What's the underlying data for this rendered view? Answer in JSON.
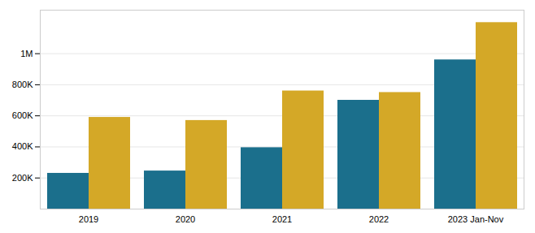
{
  "chart_data": {
    "type": "bar",
    "categories": [
      "2019",
      "2020",
      "2021",
      "2022",
      "2023 Jan-Nov"
    ],
    "series": [
      {
        "color": "#1b6f8c",
        "values": [
          230000,
          245000,
          395000,
          700000,
          960000
        ]
      },
      {
        "color": "#d4a827",
        "values": [
          590000,
          570000,
          760000,
          750000,
          1200000
        ]
      }
    ],
    "ylim": [
      0,
      1280000
    ],
    "yticks": [
      {
        "value": 200000,
        "label": "200K"
      },
      {
        "value": 400000,
        "label": "400K"
      },
      {
        "value": 600000,
        "label": "600K"
      },
      {
        "value": 800000,
        "label": "800K"
      },
      {
        "value": 1000000,
        "label": "1M"
      }
    ],
    "grid": true
  }
}
